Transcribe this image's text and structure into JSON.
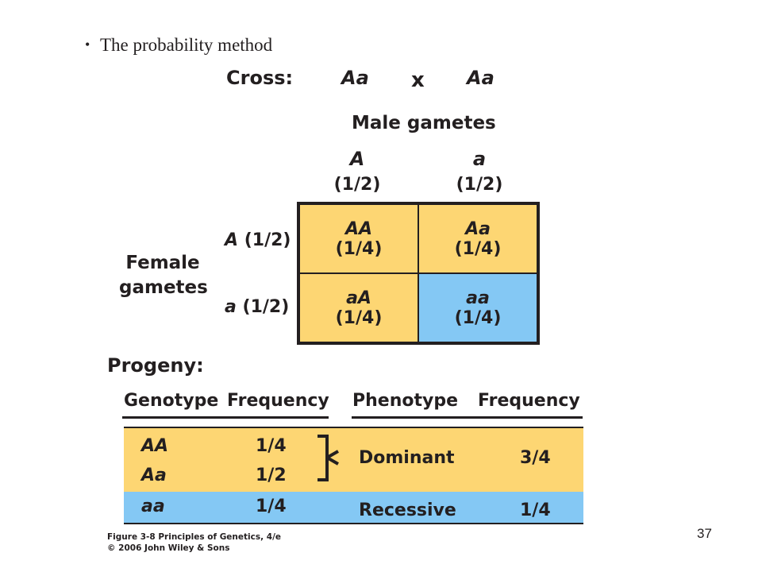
{
  "slide": {
    "bullet": "•",
    "title": "The probability method",
    "page_number": "37"
  },
  "cross": {
    "label": "Cross:",
    "parent1": "Aa",
    "symbol": "x",
    "parent2": "Aa"
  },
  "male": {
    "title": "Male gametes",
    "gametes": [
      {
        "allele": "A",
        "freq": "(1/2)"
      },
      {
        "allele": "a",
        "freq": "(1/2)"
      }
    ]
  },
  "female": {
    "title_line1": "Female",
    "title_line2": "gametes",
    "gametes": [
      {
        "allele": "A",
        "freq": "(1/2)"
      },
      {
        "allele": "a",
        "freq": "(1/2)"
      }
    ]
  },
  "punnett": [
    {
      "genotype": "AA",
      "freq": "(1/4)",
      "color": "#fdd673"
    },
    {
      "genotype": "Aa",
      "freq": "(1/4)",
      "color": "#fdd673"
    },
    {
      "genotype": "aA",
      "freq": "(1/4)",
      "color": "#fdd673"
    },
    {
      "genotype": "aa",
      "freq": "(1/4)",
      "color": "#84c8f4"
    }
  ],
  "progeny": {
    "label": "Progeny:",
    "headers": {
      "genotype": "Genotype",
      "genotype_freq": "Frequency",
      "phenotype": "Phenotype",
      "phenotype_freq": "Frequency"
    },
    "genotype_rows": [
      {
        "genotype": "AA",
        "freq": "1/4"
      },
      {
        "genotype": "Aa",
        "freq": "1/2"
      },
      {
        "genotype": "aa",
        "freq": "1/4"
      }
    ],
    "phenotype_rows": [
      {
        "phenotype": "Dominant",
        "freq": "3/4"
      },
      {
        "phenotype": "Recessive",
        "freq": "1/4"
      }
    ],
    "colors": {
      "dominant": "#fdd673",
      "recessive": "#84c8f4"
    }
  },
  "caption": {
    "line1": "Figure 3-8 Principles of Genetics, 4/e",
    "line2": "© 2006 John Wiley & Sons"
  }
}
